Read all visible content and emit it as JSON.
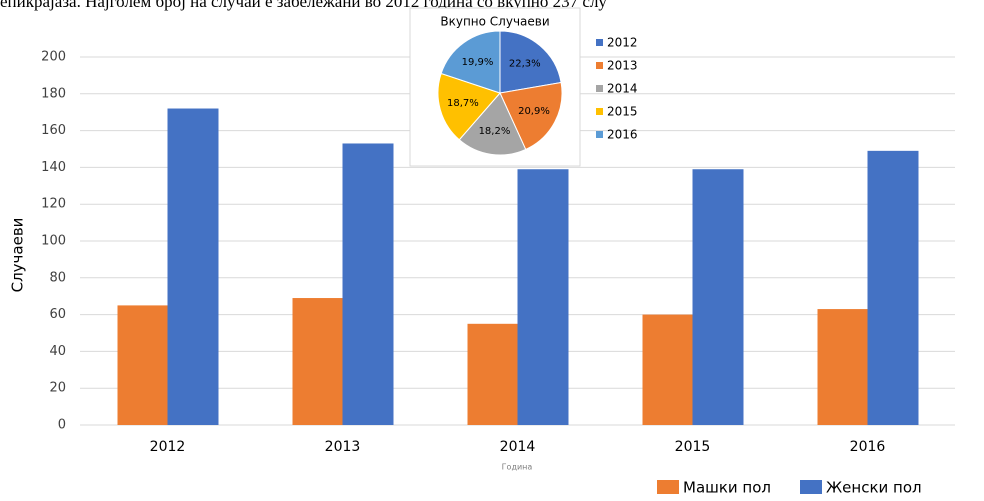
{
  "header_text": "епикрајаза. Најголем број на случаи е забележани во 2012 година со вкупно 237 слу",
  "chart_data": [
    {
      "type": "bar",
      "categories": [
        "2012",
        "2013",
        "2014",
        "2015",
        "2016"
      ],
      "series": [
        {
          "name": "Машки пол",
          "color": "#ed7d31",
          "values": [
            65,
            69,
            55,
            60,
            63
          ]
        },
        {
          "name": "Женски пол",
          "color": "#4472c4",
          "values": [
            172,
            153,
            139,
            139,
            149
          ]
        }
      ],
      "ylim": [
        0,
        200
      ],
      "yticks": [
        0,
        20,
        40,
        60,
        80,
        100,
        120,
        140,
        160,
        180,
        200
      ],
      "y_label": "Случаеви",
      "x_label": "Година",
      "grid": true,
      "legend": "bottom-right"
    },
    {
      "type": "pie",
      "title": "Вкупно Случаеви",
      "categories": [
        "2012",
        "2013",
        "2014",
        "2015",
        "2016"
      ],
      "values": [
        22.3,
        20.9,
        18.2,
        18.7,
        19.9
      ],
      "value_labels": [
        "22,3%",
        "20,9%",
        "18,2%",
        "18,7%",
        "19,9%"
      ],
      "colors": [
        "#4472c4",
        "#ed7d31",
        "#a5a5a5",
        "#ffc000",
        "#5b9bd5"
      ],
      "legend": "right"
    }
  ]
}
